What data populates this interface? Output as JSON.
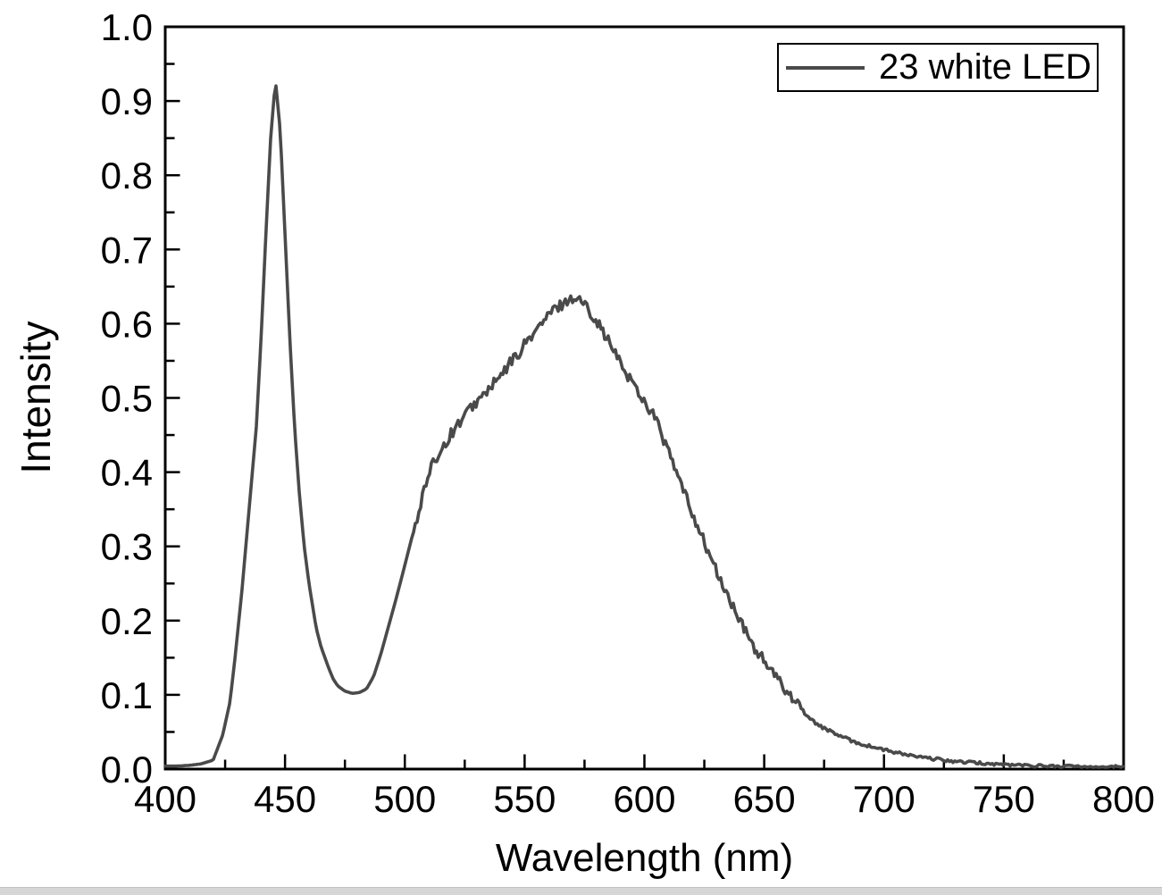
{
  "figure": {
    "background": "#ffffff",
    "frame_color": "#000000",
    "text_color": "#000000",
    "bottom_strip_color": "#d6d6d6"
  },
  "chart_data": {
    "type": "line",
    "title": "",
    "xlabel": "Wavelength (nm)",
    "ylabel": "Intensity",
    "xlim": [
      400,
      800
    ],
    "ylim": [
      0.0,
      1.0
    ],
    "x_major_tick": 50,
    "x_minor_tick": 25,
    "y_major_tick": 0.1,
    "y_minor_tick": 0.05,
    "x_tick_labels": [
      "400",
      "450",
      "500",
      "550",
      "600",
      "650",
      "700",
      "750",
      "800"
    ],
    "y_tick_labels": [
      "0.0",
      "0.1",
      "0.2",
      "0.3",
      "0.4",
      "0.5",
      "0.6",
      "0.7",
      "0.8",
      "0.9",
      "1.0"
    ],
    "grid": false,
    "legend_position": "top-right",
    "line_color": "#4a4a4a",
    "features": {
      "blue_peak_nm": 446,
      "blue_peak_intensity": 0.928,
      "valley_nm": 478,
      "valley_intensity": 0.102,
      "phosphor_peak_nm": 571,
      "phosphor_peak_intensity": 0.635
    },
    "noise_regions": [
      {
        "from": 503,
        "to": 665,
        "amp": 0.0075
      },
      {
        "from": 665,
        "to": 800,
        "amp": 0.002
      }
    ],
    "series": [
      {
        "name": "23 white LED",
        "points": [
          [
            400,
            0.004
          ],
          [
            405,
            0.004
          ],
          [
            410,
            0.005
          ],
          [
            415,
            0.007
          ],
          [
            420,
            0.012
          ],
          [
            424,
            0.046
          ],
          [
            427,
            0.09
          ],
          [
            429,
            0.146
          ],
          [
            432,
            0.24
          ],
          [
            435,
            0.35
          ],
          [
            438,
            0.46
          ],
          [
            440,
            0.58
          ],
          [
            442,
            0.72
          ],
          [
            444,
            0.85
          ],
          [
            446,
            0.928
          ],
          [
            448,
            0.86
          ],
          [
            450,
            0.72
          ],
          [
            452,
            0.58
          ],
          [
            454,
            0.46
          ],
          [
            456,
            0.37
          ],
          [
            458,
            0.3
          ],
          [
            460,
            0.25
          ],
          [
            463,
            0.19
          ],
          [
            465,
            0.165
          ],
          [
            468,
            0.138
          ],
          [
            470,
            0.122
          ],
          [
            472,
            0.112
          ],
          [
            475,
            0.105
          ],
          [
            478,
            0.102
          ],
          [
            481,
            0.103
          ],
          [
            484,
            0.108
          ],
          [
            487,
            0.125
          ],
          [
            490,
            0.155
          ],
          [
            493,
            0.19
          ],
          [
            496,
            0.225
          ],
          [
            499,
            0.262
          ],
          [
            502,
            0.3
          ],
          [
            505,
            0.338
          ],
          [
            508,
            0.375
          ],
          [
            511,
            0.405
          ],
          [
            514,
            0.425
          ],
          [
            517,
            0.44
          ],
          [
            520,
            0.455
          ],
          [
            523,
            0.468
          ],
          [
            526,
            0.48
          ],
          [
            529,
            0.492
          ],
          [
            532,
            0.5
          ],
          [
            535,
            0.512
          ],
          [
            538,
            0.522
          ],
          [
            541,
            0.532
          ],
          [
            544,
            0.548
          ],
          [
            547,
            0.558
          ],
          [
            550,
            0.572
          ],
          [
            553,
            0.585
          ],
          [
            556,
            0.595
          ],
          [
            559,
            0.608
          ],
          [
            562,
            0.618
          ],
          [
            565,
            0.625
          ],
          [
            568,
            0.632
          ],
          [
            571,
            0.635
          ],
          [
            574,
            0.63
          ],
          [
            577,
            0.618
          ],
          [
            580,
            0.605
          ],
          [
            583,
            0.588
          ],
          [
            586,
            0.57
          ],
          [
            589,
            0.553
          ],
          [
            592,
            0.535
          ],
          [
            595,
            0.522
          ],
          [
            598,
            0.505
          ],
          [
            601,
            0.49
          ],
          [
            604,
            0.478
          ],
          [
            607,
            0.452
          ],
          [
            610,
            0.428
          ],
          [
            613,
            0.402
          ],
          [
            616,
            0.378
          ],
          [
            619,
            0.352
          ],
          [
            622,
            0.33
          ],
          [
            625,
            0.305
          ],
          [
            628,
            0.282
          ],
          [
            631,
            0.259
          ],
          [
            634,
            0.238
          ],
          [
            637,
            0.218
          ],
          [
            640,
            0.198
          ],
          [
            643,
            0.18
          ],
          [
            646,
            0.163
          ],
          [
            649,
            0.15
          ],
          [
            652,
            0.136
          ],
          [
            655,
            0.123
          ],
          [
            658,
            0.111
          ],
          [
            661,
            0.1
          ],
          [
            664,
            0.09
          ],
          [
            667,
            0.075
          ],
          [
            670,
            0.065
          ],
          [
            675,
            0.055
          ],
          [
            680,
            0.047
          ],
          [
            685,
            0.04
          ],
          [
            690,
            0.034
          ],
          [
            695,
            0.03
          ],
          [
            700,
            0.026
          ],
          [
            705,
            0.022
          ],
          [
            710,
            0.019
          ],
          [
            715,
            0.016
          ],
          [
            720,
            0.014
          ],
          [
            725,
            0.012
          ],
          [
            730,
            0.01
          ],
          [
            735,
            0.009
          ],
          [
            740,
            0.008
          ],
          [
            745,
            0.007
          ],
          [
            750,
            0.006
          ],
          [
            760,
            0.005
          ],
          [
            770,
            0.004
          ],
          [
            780,
            0.0035
          ],
          [
            790,
            0.003
          ],
          [
            800,
            0.003
          ]
        ]
      }
    ]
  }
}
